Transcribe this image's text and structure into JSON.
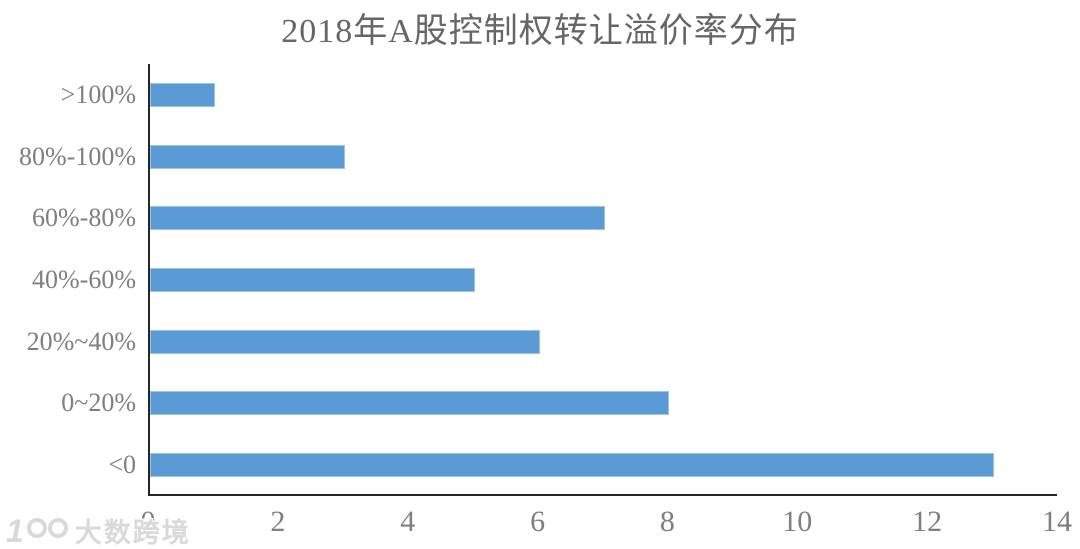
{
  "chart_data": {
    "type": "bar",
    "orientation": "horizontal",
    "title": "2018年A股控制权转让溢价率分布",
    "categories": [
      ">100%",
      "80%-100%",
      "60%-80%",
      "40%-60%",
      "20%~40%",
      "0~20%",
      "<0"
    ],
    "values": [
      1,
      3,
      7,
      5,
      6,
      8,
      13
    ],
    "x_ticks": [
      0,
      2,
      4,
      6,
      8,
      10,
      12,
      14
    ],
    "xlim": [
      0,
      14
    ],
    "xlabel": "",
    "ylabel": "",
    "grid": false,
    "legend": "none",
    "bar_color": "#5b9bd5",
    "bar_border_color": "#9cc2e5",
    "axis_line_color": "#262626",
    "tick_label_color": "#7f7f7f",
    "title_color": "#666666"
  },
  "watermark": {
    "logo_text": "100",
    "text": "大数跨境"
  }
}
